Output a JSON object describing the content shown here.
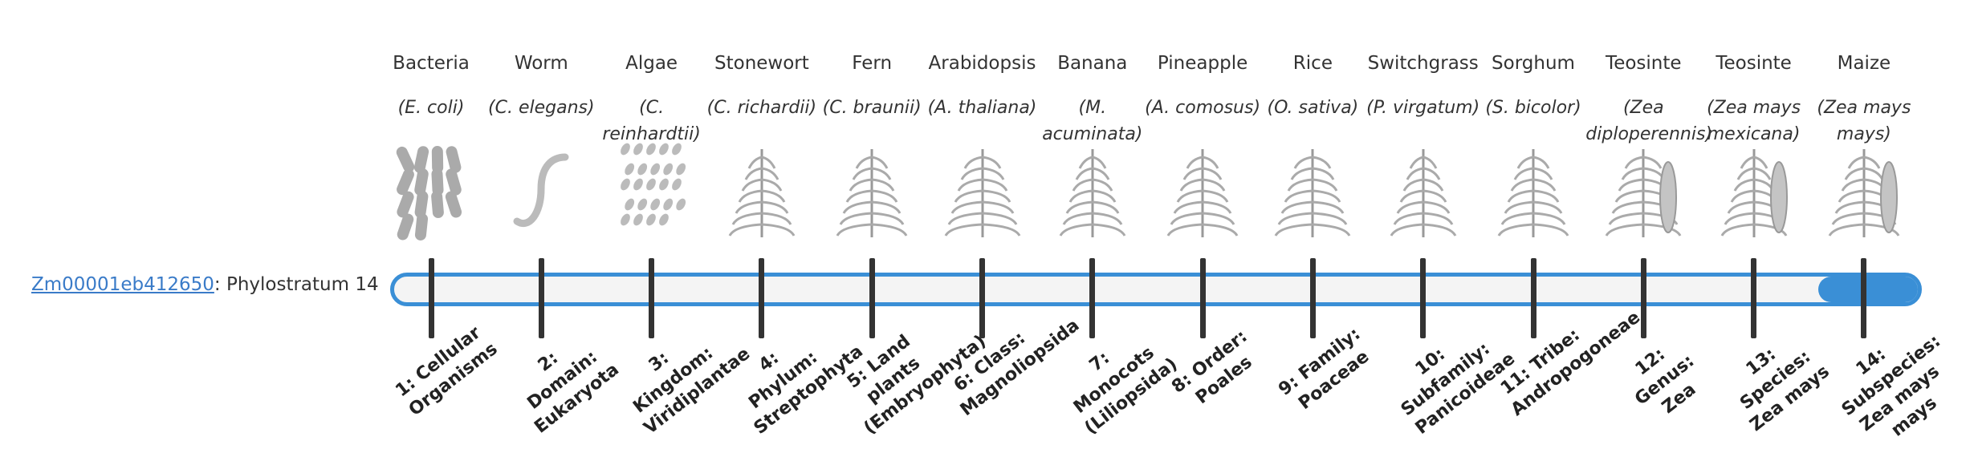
{
  "gene_link": "Zm00001eb412650",
  "gene_suffix": ": Phylostratum 14",
  "strata": [
    {
      "name": "Bacteria",
      "species": "(E. coli)",
      "rank": "1: Cellular Organisms"
    },
    {
      "name": "Worm",
      "species": "(C. elegans)",
      "rank": "2: Domain: Eukaryota"
    },
    {
      "name": "Algae",
      "species": "(C. reinhardtii)",
      "rank": "3: Kingdom: Viridiplantae"
    },
    {
      "name": "Stonewort",
      "species": "(C. richardii)",
      "rank": "4: Phylum: Streptophyta"
    },
    {
      "name": "Fern",
      "species": "(C. braunii)",
      "rank": "5: Land plants (Embryophyta)"
    },
    {
      "name": "Arabidopsis",
      "species": "(A. thaliana)",
      "rank": "6: Class: Magnoliopsida"
    },
    {
      "name": "Banana",
      "species": "(M. acuminata)",
      "rank": "7: Monocots (Liliopsida)"
    },
    {
      "name": "Pineapple",
      "species": "(A. comosus)",
      "rank": "8: Order: Poales"
    },
    {
      "name": "Rice",
      "species": "(O. sativa)",
      "rank": "9: Family: Poaceae"
    },
    {
      "name": "Switchgrass",
      "species": "(P. virgatum)",
      "rank": "10: Subfamily: Panicoideae"
    },
    {
      "name": "Sorghum",
      "species": "(S. bicolor)",
      "rank": "11: Tribe: Andropogoneae"
    },
    {
      "name": "Teosinte",
      "species": "(Zea diploperennis)",
      "rank": "12: Genus: Zea"
    },
    {
      "name": "Teosinte",
      "species": "(Zea mays mexicana)",
      "rank": "13: Species: Zea mays"
    },
    {
      "name": "Maize",
      "species": "(Zea mays mays)",
      "rank": "14: Subspecies: Zea mays mays"
    }
  ]
}
